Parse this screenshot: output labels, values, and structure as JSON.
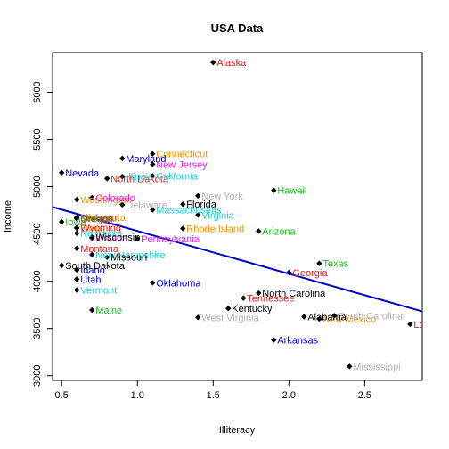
{
  "chart_data": {
    "type": "scatter",
    "title": "USA Data",
    "xlabel": "Illiteracy",
    "ylabel": "Income",
    "xlim": [
      0.44,
      2.88
    ],
    "ylim": [
      2950,
      6420
    ],
    "x_ticks": [
      0.5,
      1.0,
      1.5,
      2.0,
      2.5
    ],
    "x_tick_labels": [
      "0.5",
      "1.0",
      "1.5",
      "2.0",
      "2.5"
    ],
    "y_ticks": [
      3000,
      3500,
      4000,
      4500,
      5000,
      5500,
      6000
    ],
    "y_tick_labels": [
      "3000",
      "3500",
      "4000",
      "4500",
      "5000",
      "5500",
      "6000"
    ],
    "grid": false,
    "marker_color": "#000000",
    "regression_line": {
      "x": [
        0.44,
        2.88
      ],
      "y": [
        4785,
        3680
      ],
      "color": "#0000cd"
    },
    "points": [
      {
        "label": "Alaska",
        "x": 1.5,
        "y": 6315,
        "color": "#df2222"
      },
      {
        "label": "Connecticut",
        "x": 1.1,
        "y": 5348,
        "color": "#f0960a"
      },
      {
        "label": "Maryland",
        "x": 0.9,
        "y": 5299,
        "color": "#0000cd"
      },
      {
        "label": "New Jersey",
        "x": 1.1,
        "y": 5237,
        "color": "#df22df"
      },
      {
        "label": "Nevada",
        "x": 0.5,
        "y": 5149,
        "color": "#0000cd"
      },
      {
        "label": "North Dakota",
        "x": 0.8,
        "y": 5087,
        "color": "#df2222"
      },
      {
        "label": "Illinois",
        "x": 0.9,
        "y": 5107,
        "color": "#22d0d0"
      },
      {
        "label": "California",
        "x": 1.1,
        "y": 5114,
        "color": "#22d0d0"
      },
      {
        "label": "Hawaii",
        "x": 1.9,
        "y": 4963,
        "color": "#22b822"
      },
      {
        "label": "Washington",
        "x": 0.6,
        "y": 4864,
        "color": "#f0960a"
      },
      {
        "label": "New York",
        "x": 1.4,
        "y": 4903,
        "color": "#b4b4b4"
      },
      {
        "label": "Colorado",
        "x": 0.7,
        "y": 4884,
        "color": "#df22df"
      },
      {
        "label": "Delaware",
        "x": 0.9,
        "y": 4809,
        "color": "#b4b4b4"
      },
      {
        "label": "Michigan",
        "x": 0.6,
        "y": 4669,
        "color": "#df22df"
      },
      {
        "label": "Florida",
        "x": 1.3,
        "y": 4815,
        "color": "#000000"
      },
      {
        "label": "Massachusetts",
        "x": 1.1,
        "y": 4755,
        "color": "#22d0d0"
      },
      {
        "label": "Virginia",
        "x": 1.4,
        "y": 4701,
        "color": "#22d0d0"
      },
      {
        "label": "Rhode Island",
        "x": 1.3,
        "y": 4558,
        "color": "#f0960a"
      },
      {
        "label": "Ohio",
        "x": 0.6,
        "y": 4561,
        "color": "#f0960a"
      },
      {
        "label": "Wyoming",
        "x": 0.6,
        "y": 4566,
        "color": "#df2222"
      },
      {
        "label": "Nebraska",
        "x": 0.6,
        "y": 4508,
        "color": "#22d0d0"
      },
      {
        "label": "Iowa",
        "x": 0.5,
        "y": 4628,
        "color": "#22b822"
      },
      {
        "label": "Arizona",
        "x": 1.8,
        "y": 4530,
        "color": "#22b822"
      },
      {
        "label": "Minnesota",
        "x": 0.6,
        "y": 4675,
        "color": "#f0960a"
      },
      {
        "label": "Indiana",
        "x": 0.7,
        "y": 4458,
        "color": "#df22df"
      },
      {
        "label": "Pennsylvania",
        "x": 1.0,
        "y": 4449,
        "color": "#df22df"
      },
      {
        "label": "Montana",
        "x": 0.6,
        "y": 4347,
        "color": "#df2222"
      },
      {
        "label": "Wisconsin",
        "x": 0.7,
        "y": 4468,
        "color": "#000000"
      },
      {
        "label": "Kansas",
        "x": 0.6,
        "y": 4669,
        "color": "#22b822"
      },
      {
        "label": "Texas",
        "x": 2.2,
        "y": 4188,
        "color": "#22b822"
      },
      {
        "label": "New Hampshire",
        "x": 0.7,
        "y": 4281,
        "color": "#22d0d0"
      },
      {
        "label": "Missouri",
        "x": 0.8,
        "y": 4254,
        "color": "#000000"
      },
      {
        "label": "Idaho",
        "x": 0.6,
        "y": 4119,
        "color": "#0000cd"
      },
      {
        "label": "South Dakota",
        "x": 0.5,
        "y": 4167,
        "color": "#000000"
      },
      {
        "label": "Oregon",
        "x": 0.6,
        "y": 4660,
        "color": "#df2222"
      },
      {
        "label": "Georgia",
        "x": 2.0,
        "y": 4091,
        "color": "#df2222"
      },
      {
        "label": "Utah",
        "x": 0.6,
        "y": 4022,
        "color": "#0000cd"
      },
      {
        "label": "Oklahoma",
        "x": 1.1,
        "y": 3983,
        "color": "#0000cd"
      },
      {
        "label": "Vermont",
        "x": 0.6,
        "y": 3907,
        "color": "#22d0d0"
      },
      {
        "label": "Tennessee",
        "x": 1.7,
        "y": 3821,
        "color": "#df2222"
      },
      {
        "label": "North Carolina",
        "x": 1.8,
        "y": 3875,
        "color": "#000000"
      },
      {
        "label": "Maine",
        "x": 0.7,
        "y": 3694,
        "color": "#22b822"
      },
      {
        "label": "New Mexico",
        "x": 2.2,
        "y": 3601,
        "color": "#f0960a"
      },
      {
        "label": "South Carolina",
        "x": 2.3,
        "y": 3635,
        "color": "#b4b4b4"
      },
      {
        "label": "West Virginia",
        "x": 1.4,
        "y": 3617,
        "color": "#b4b4b4"
      },
      {
        "label": "Kentucky",
        "x": 1.6,
        "y": 3712,
        "color": "#000000"
      },
      {
        "label": "Alabama",
        "x": 2.1,
        "y": 3624,
        "color": "#000000"
      },
      {
        "label": "Louisiana",
        "x": 2.8,
        "y": 3545,
        "color": "#df2222"
      },
      {
        "label": "Arkansas",
        "x": 1.9,
        "y": 3378,
        "color": "#0000cd"
      },
      {
        "label": "Mississippi",
        "x": 2.4,
        "y": 3098,
        "color": "#b4b4b4"
      }
    ]
  }
}
